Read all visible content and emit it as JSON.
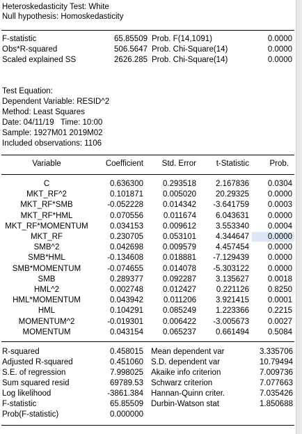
{
  "header": {
    "line1": "Heteroskedasticity Test: White",
    "line2": "Null hypothesis: Homoskedasticity"
  },
  "tests": [
    {
      "label": "F-statistic",
      "value": "65.85509",
      "prob_label": "Prob. F(14,1091)",
      "prob": "0.0000"
    },
    {
      "label": "Obs*R-squared",
      "value": "506.5647",
      "prob_label": "Prob. Chi-Square(14)",
      "prob": "0.0000"
    },
    {
      "label": "Scaled explained SS",
      "value": "2626.285",
      "prob_label": "Prob. Chi-Square(14)",
      "prob": "0.0000"
    }
  ],
  "equation": {
    "title": "Test Equation:",
    "dependent": "Dependent Variable: RESID^2",
    "method": "Method: Least Squares",
    "date": "Date: 04/11/19   Time: 10:00",
    "sample": "Sample: 1927M01 2019M02",
    "observations": "Included observations: 1106"
  },
  "coef_table": {
    "headers": [
      "Variable",
      "Coefficient",
      "Std. Error",
      "t-Statistic",
      "Prob."
    ],
    "rows": [
      [
        "C",
        "0.636300",
        "0.293518",
        "2.167836",
        "0.0304"
      ],
      [
        "MKT_RF^2",
        "0.101871",
        "0.005020",
        "20.29325",
        "0.0000"
      ],
      [
        "MKT_RF*SMB",
        "-0.052228",
        "0.014342",
        "-3.641759",
        "0.0003"
      ],
      [
        "MKT_RF*HML",
        "0.070556",
        "0.011674",
        "6.043631",
        "0.0000"
      ],
      [
        "MKT_RF*MOMENTUM",
        "0.034153",
        "0.009612",
        "3.553340",
        "0.0004"
      ],
      [
        "MKT_RF",
        "0.230705",
        "0.053101",
        "4.344647",
        "0.0000"
      ],
      [
        "SMB^2",
        "0.042698",
        "0.009579",
        "4.457454",
        "0.0000"
      ],
      [
        "SMB*HML",
        "-0.134608",
        "0.018881",
        "-7.129439",
        "0.0000"
      ],
      [
        "SMB*MOMENTUM",
        "-0.074655",
        "0.014078",
        "-5.303122",
        "0.0000"
      ],
      [
        "SMB",
        "0.289377",
        "0.092287",
        "3.135627",
        "0.0018"
      ],
      [
        "HML^2",
        "0.002748",
        "0.012427",
        "0.221126",
        "0.8250"
      ],
      [
        "HML*MOMENTUM",
        "0.043942",
        "0.011206",
        "3.921415",
        "0.0001"
      ],
      [
        "HML",
        "0.104291",
        "0.085249",
        "1.223366",
        "0.2215"
      ],
      [
        "MOMENTUM^2",
        "-0.019301",
        "0.006422",
        "-3.005673",
        "0.0027"
      ],
      [
        "MOMENTUM",
        "0.043154",
        "0.065237",
        "0.661494",
        "0.5084"
      ]
    ]
  },
  "stats": [
    {
      "label": "R-squared",
      "value": "0.458015",
      "label2": "Mean dependent var",
      "value2": "3.335706"
    },
    {
      "label": "Adjusted R-squared",
      "value": "0.451060",
      "label2": "S.D. dependent var",
      "value2": "10.79494"
    },
    {
      "label": "S.E. of regression",
      "value": "7.998025",
      "label2": "Akaike info criterion",
      "value2": "7.009736"
    },
    {
      "label": "Sum squared resid",
      "value": "69789.53",
      "label2": "Schwarz criterion",
      "value2": "7.077663"
    },
    {
      "label": "Log likelihood",
      "value": "-3861.384",
      "label2": "Hannan-Quinn criter.",
      "value2": "7.035426"
    },
    {
      "label": "F-statistic",
      "value": "65.85509",
      "label2": "Durbin-Watson stat",
      "value2": "1.850688"
    },
    {
      "label": "Prob(F-statistic)",
      "value": "0.000000",
      "label2": "",
      "value2": ""
    }
  ],
  "colors": {
    "selection": "#dde8f7"
  }
}
